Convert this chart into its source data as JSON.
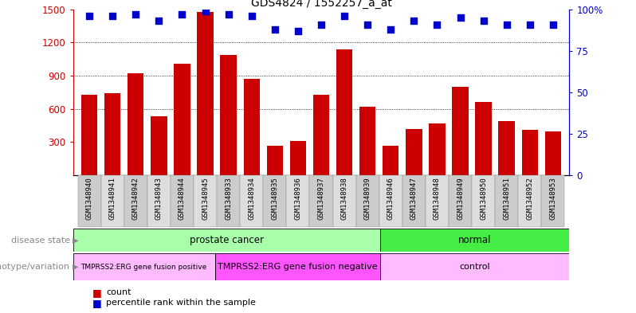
{
  "title": "GDS4824 / 1552257_a_at",
  "samples": [
    "GSM1348940",
    "GSM1348941",
    "GSM1348942",
    "GSM1348943",
    "GSM1348944",
    "GSM1348945",
    "GSM1348933",
    "GSM1348934",
    "GSM1348935",
    "GSM1348936",
    "GSM1348937",
    "GSM1348938",
    "GSM1348939",
    "GSM1348946",
    "GSM1348947",
    "GSM1348948",
    "GSM1348949",
    "GSM1348950",
    "GSM1348951",
    "GSM1348952",
    "GSM1348953"
  ],
  "counts": [
    730,
    740,
    920,
    530,
    1010,
    1480,
    1090,
    870,
    270,
    310,
    730,
    1140,
    620,
    270,
    420,
    470,
    800,
    660,
    490,
    410,
    400
  ],
  "percentiles": [
    96,
    96,
    97,
    93,
    97,
    99,
    97,
    96,
    88,
    87,
    91,
    96,
    91,
    88,
    93,
    91,
    95,
    93,
    91,
    91,
    91
  ],
  "disease_state_groups": [
    {
      "label": "prostate cancer",
      "start": 0,
      "end": 12,
      "color": "#aaffaa"
    },
    {
      "label": "normal",
      "start": 13,
      "end": 20,
      "color": "#44ee44"
    }
  ],
  "genotype_groups": [
    {
      "label": "TMPRSS2:ERG gene fusion positive",
      "start": 0,
      "end": 5,
      "color": "#ffbbff"
    },
    {
      "label": "TMPRSS2:ERG gene fusion negative",
      "start": 6,
      "end": 12,
      "color": "#ff55ff"
    },
    {
      "label": "control",
      "start": 13,
      "end": 20,
      "color": "#ffbbff"
    }
  ],
  "ylim_left": [
    0,
    1500
  ],
  "ylim_right": [
    0,
    100
  ],
  "yticks_left": [
    300,
    600,
    900,
    1200,
    1500
  ],
  "yticks_right": [
    0,
    25,
    50,
    75,
    100
  ],
  "bar_color": "#cc0000",
  "dot_color": "#0000cc",
  "background_color": "#ffffff",
  "label_disease": "disease state",
  "label_genotype": "genotype/variation",
  "legend_count": "count",
  "legend_percentile": "percentile rank within the sample",
  "tick_bg_colors": [
    "#cccccc",
    "#dddddd"
  ]
}
